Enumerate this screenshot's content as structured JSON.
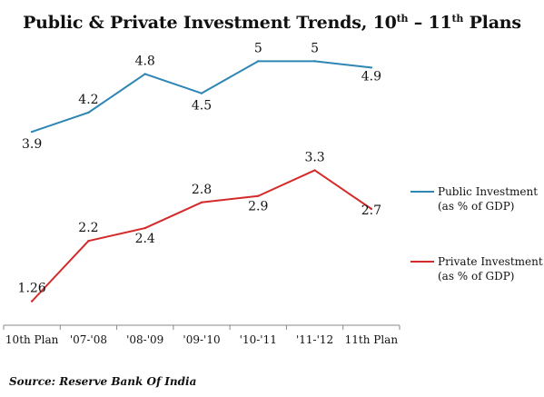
{
  "title": {
    "part1": "Public & Private Investment Trends, 10",
    "sup1": "th",
    "part2": " – 11",
    "sup2": "th",
    "part3": " Plans"
  },
  "source": "Source: Reserve Bank Of India",
  "chart_data": {
    "type": "line",
    "categories": [
      "10th Plan",
      "'07-'08",
      "'08-'09",
      "'09-'10",
      "'10-'11",
      "'11-'12",
      "11th Plan"
    ],
    "series": [
      {
        "name": "Public Investment (as % of GDP)",
        "legend_lines": [
          "Public Investment",
          "(as % of GDP)"
        ],
        "color": "#2e86b5",
        "values": [
          3.9,
          4.2,
          4.8,
          4.5,
          5.0,
          5.0,
          4.9
        ],
        "labels": [
          "3.9",
          "4.2",
          "4.8",
          "4.5",
          "5",
          "5",
          "4.9"
        ]
      },
      {
        "name": "Private Investment (as % of GDP)",
        "legend_lines": [
          "Private Investment",
          "(as % of GDP)"
        ],
        "color": "#d42a2a",
        "values": [
          1.26,
          2.2,
          2.4,
          2.8,
          2.9,
          3.3,
          2.7
        ],
        "labels": [
          "1.26",
          "2.2",
          "2.4",
          "2.8",
          "2.9",
          "3.3",
          "2.7"
        ]
      }
    ],
    "xlabel": "",
    "ylabel": "",
    "ylim": [
      1.0,
      5.5
    ],
    "grid": false,
    "legend_position": "right"
  }
}
